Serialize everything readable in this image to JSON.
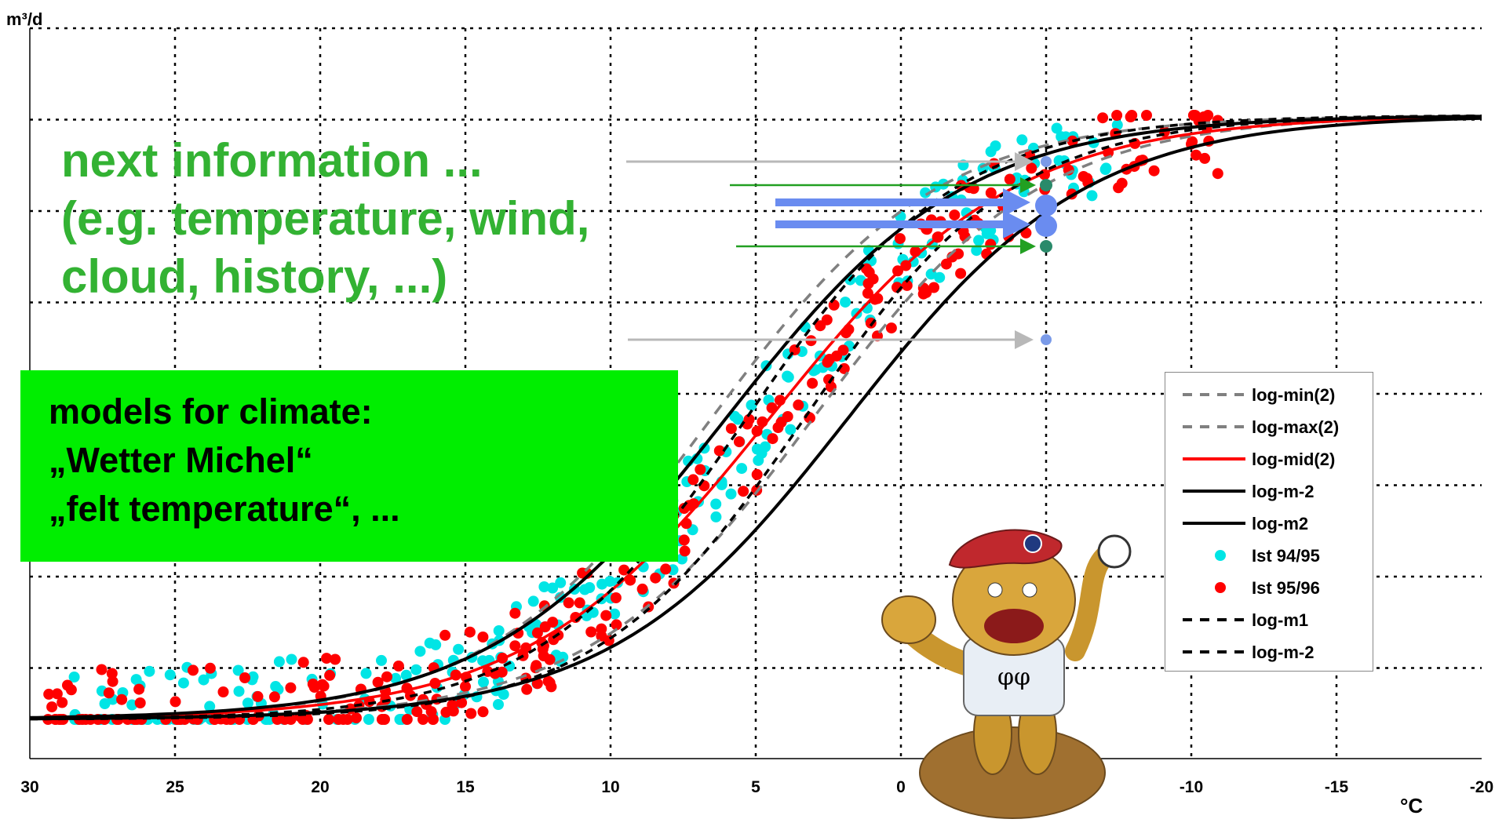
{
  "chart_data": {
    "type": "scatter",
    "title": "",
    "ylabel": "m³/d",
    "xlabel": "°C",
    "xlim": [
      30,
      -20
    ],
    "x_ticks": [
      "30",
      "25",
      "20",
      "15",
      "10",
      "5",
      "0",
      "-5",
      "-10",
      "-15",
      "-20"
    ],
    "y_ticks_labeled": false,
    "grid": true,
    "legend_position": "bottom-right",
    "series": [
      {
        "name": "log-min(2)",
        "kind": "line",
        "color": "#808080",
        "dash": "dashed"
      },
      {
        "name": "log-max(2)",
        "kind": "line",
        "color": "#808080",
        "dash": "dashed"
      },
      {
        "name": "log-mid(2)",
        "kind": "line",
        "color": "#ff0000",
        "dash": "solid"
      },
      {
        "name": "log-m-2",
        "kind": "line",
        "color": "#000000",
        "dash": "solid"
      },
      {
        "name": "log-m2",
        "kind": "line",
        "color": "#000000",
        "dash": "solid"
      },
      {
        "name": "Ist 94/95",
        "kind": "scatter",
        "color": "#00e5e5"
      },
      {
        "name": "Ist 95/96",
        "kind": "scatter",
        "color": "#ff0000"
      },
      {
        "name": "log-m1",
        "kind": "line",
        "color": "#000000",
        "dash": "dashed"
      },
      {
        "name": "log-m-2",
        "kind": "line",
        "color": "#000000",
        "dash": "dashed"
      }
    ],
    "forecast_temperature": -5,
    "annotation_lines": [
      "next information ...",
      "(e.g. temperature, wind,",
      "cloud, history, ...)"
    ],
    "box_lines": [
      "models for climate:",
      "„Wetter Michel“",
      "„felt temperature“, ..."
    ],
    "mascot_shirt_text": "φφ"
  }
}
